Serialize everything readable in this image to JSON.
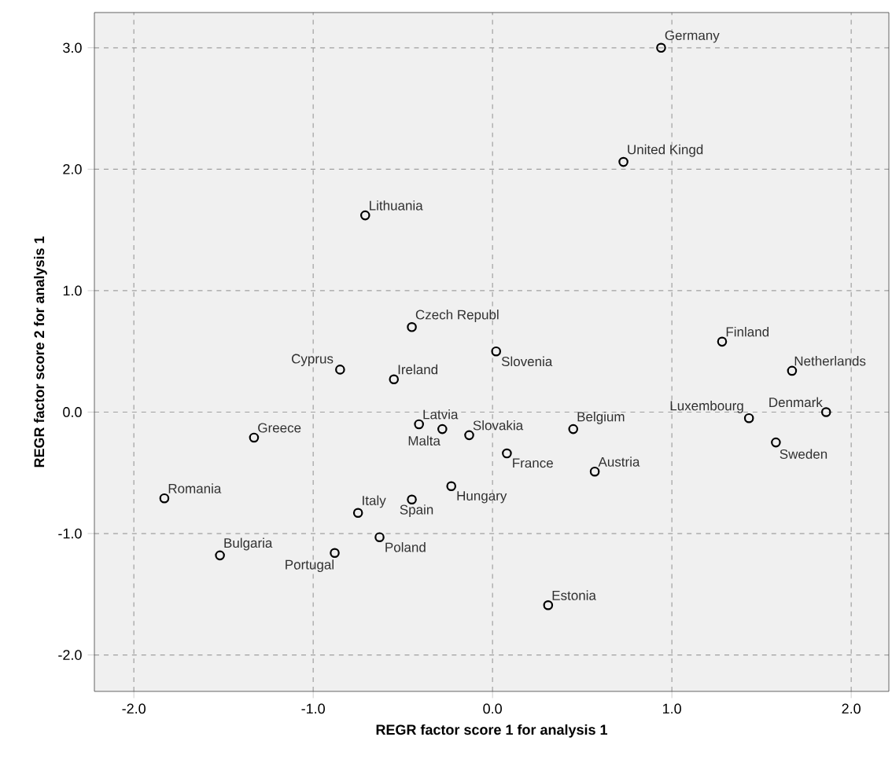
{
  "chart_data": {
    "type": "scatter",
    "xlabel": "REGR factor score   1 for analysis 1",
    "ylabel": "REGR factor score   2 for analysis 1",
    "xlim": [
      -2.22,
      2.21
    ],
    "ylim": [
      -2.3,
      3.29
    ],
    "xticks": [
      {
        "value": -2,
        "label": "-2.0"
      },
      {
        "value": -1,
        "label": "-1.0"
      },
      {
        "value": 0,
        "label": "0.0"
      },
      {
        "value": 1,
        "label": "1.0"
      },
      {
        "value": 2,
        "label": "2.0"
      }
    ],
    "yticks": [
      {
        "value": -2,
        "label": "-2.0"
      },
      {
        "value": -1,
        "label": "-1.0"
      },
      {
        "value": 0,
        "label": "0.0"
      },
      {
        "value": 1,
        "label": "1.0"
      },
      {
        "value": 2,
        "label": "2.0"
      },
      {
        "value": 3,
        "label": "3.0"
      }
    ],
    "grid": true,
    "marker": "circle",
    "series": [
      {
        "color": "#000000",
        "x": [
          0.94,
          0.73,
          -0.71,
          -0.45,
          0.02,
          -0.85,
          -0.55,
          1.28,
          1.67,
          1.86,
          1.43,
          1.58,
          -1.33,
          -0.41,
          -0.28,
          -0.13,
          0.45,
          0.08,
          0.57,
          -1.83,
          -0.23,
          -0.45,
          -0.75,
          -0.63,
          -0.88,
          -1.52,
          0.31
        ],
        "values": [
          3.0,
          2.06,
          1.62,
          0.7,
          0.5,
          0.35,
          0.27,
          0.58,
          0.34,
          0.0,
          -0.05,
          -0.25,
          -0.21,
          -0.1,
          -0.14,
          -0.19,
          -0.14,
          -0.34,
          -0.49,
          -0.71,
          -0.61,
          -0.72,
          -0.83,
          -1.03,
          -1.16,
          -1.18,
          -1.59
        ]
      }
    ],
    "annotations": [
      {
        "text": "Germany",
        "x": 0.94,
        "y": 3.0
      },
      {
        "text": "United Kingd",
        "x": 0.73,
        "y": 2.06
      },
      {
        "text": "Lithuania",
        "x": -0.71,
        "y": 1.62
      },
      {
        "text": "Czech Republ",
        "x": -0.45,
        "y": 0.7
      },
      {
        "text": "Slovenia",
        "x": 0.02,
        "y": 0.5
      },
      {
        "text": "Cyprus",
        "x": -0.85,
        "y": 0.35
      },
      {
        "text": "Ireland",
        "x": -0.55,
        "y": 0.27
      },
      {
        "text": "Finland",
        "x": 1.28,
        "y": 0.58
      },
      {
        "text": "Netherlands",
        "x": 1.67,
        "y": 0.34
      },
      {
        "text": "Denmark",
        "x": 1.86,
        "y": 0.0
      },
      {
        "text": "Luxembourg",
        "x": 1.43,
        "y": -0.05
      },
      {
        "text": "Sweden",
        "x": 1.58,
        "y": -0.25
      },
      {
        "text": "Greece",
        "x": -1.33,
        "y": -0.21
      },
      {
        "text": "Latvia",
        "x": -0.41,
        "y": -0.1
      },
      {
        "text": "Malta",
        "x": -0.28,
        "y": -0.14
      },
      {
        "text": "Slovakia",
        "x": -0.13,
        "y": -0.19
      },
      {
        "text": "Belgium",
        "x": 0.45,
        "y": -0.14
      },
      {
        "text": "France",
        "x": 0.08,
        "y": -0.34
      },
      {
        "text": "Austria",
        "x": 0.57,
        "y": -0.49
      },
      {
        "text": "Romania",
        "x": -1.83,
        "y": -0.71
      },
      {
        "text": "Hungary",
        "x": -0.23,
        "y": -0.61
      },
      {
        "text": "Spain",
        "x": -0.45,
        "y": -0.72
      },
      {
        "text": "Italy",
        "x": -0.75,
        "y": -0.83
      },
      {
        "text": "Poland",
        "x": -0.63,
        "y": -1.03
      },
      {
        "text": "Portugal",
        "x": -0.88,
        "y": -1.16
      },
      {
        "text": "Bulgaria",
        "x": -1.52,
        "y": -1.18
      },
      {
        "text": "Estonia",
        "x": 0.31,
        "y": -1.59
      }
    ]
  }
}
